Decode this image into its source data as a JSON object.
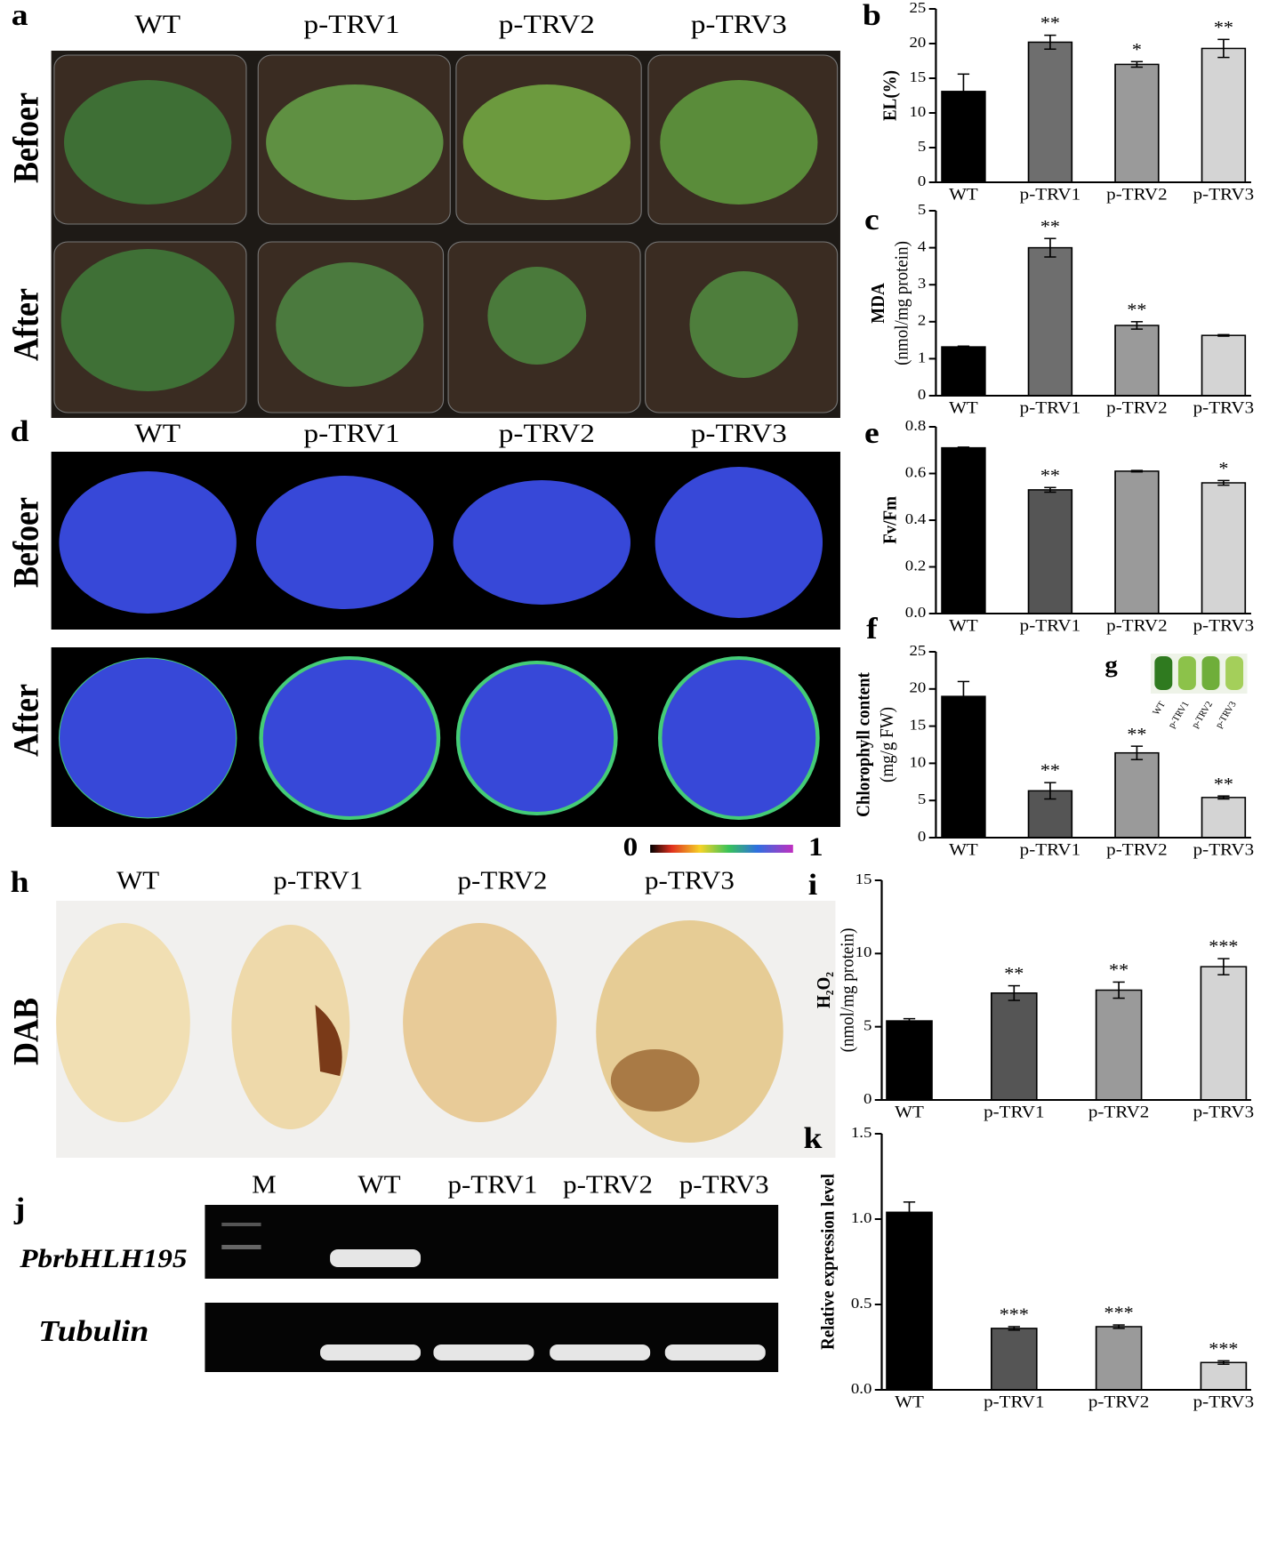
{
  "chart_data": [
    {
      "type": "bar",
      "panel": "b",
      "ylabel": [
        "EL(%)"
      ],
      "categories": [
        "WT",
        "p-TRV1",
        "p-TRV2",
        "p-TRV3"
      ],
      "values": [
        13.1,
        20.2,
        17,
        19.3
      ],
      "errors": [
        2.5,
        1,
        0.4,
        1.3
      ],
      "annotations": [
        null,
        "**",
        "*",
        "**"
      ],
      "colors": [
        "#000000",
        "#6e6e6e",
        "#9a9a9a",
        "#d4d4d4"
      ],
      "ylim": [
        0,
        25
      ],
      "yticks": [
        0,
        5,
        10,
        15,
        20,
        25
      ]
    },
    {
      "type": "bar",
      "panel": "c",
      "ylabel": [
        "MDA",
        "(nmol/mg protein)"
      ],
      "categories": [
        "WT",
        "p-TRV1",
        "p-TRV2",
        "p-TRV3"
      ],
      "values": [
        1.32,
        4.0,
        1.9,
        1.63
      ],
      "errors": [
        0.02,
        0.25,
        0.1,
        0.02
      ],
      "annotations": [
        null,
        "**",
        "**",
        null
      ],
      "colors": [
        "#000000",
        "#6e6e6e",
        "#9a9a9a",
        "#d4d4d4"
      ],
      "ylim": [
        0,
        5
      ],
      "yticks": [
        0,
        1,
        2,
        3,
        4,
        5
      ]
    },
    {
      "type": "bar",
      "panel": "e",
      "ylabel": [
        "Fv/Fm"
      ],
      "categories": [
        "WT",
        "p-TRV1",
        "p-TRV2",
        "p-TRV3"
      ],
      "values": [
        0.71,
        0.53,
        0.61,
        0.56
      ],
      "errors": [
        0.003,
        0.01,
        0.003,
        0.01
      ],
      "annotations": [
        null,
        "**",
        null,
        "*"
      ],
      "colors": [
        "#000000",
        "#555555",
        "#9a9a9a",
        "#d4d4d4"
      ],
      "ylim": [
        0,
        0.8
      ],
      "yticks": [
        {
          "value": 0,
          "label": "0.0"
        },
        0.2,
        0.4,
        0.6,
        0.8
      ]
    },
    {
      "type": "bar",
      "panel": "f",
      "ylabel": [
        "Chlorophyll content",
        "(mg/g FW)"
      ],
      "categories": [
        "WT",
        "p-TRV1",
        "p-TRV2",
        "p-TRV3"
      ],
      "values": [
        19,
        6.3,
        11.4,
        5.4
      ],
      "errors": [
        2,
        1.1,
        0.9,
        0.2
      ],
      "annotations": [
        null,
        "**",
        "**",
        "**"
      ],
      "colors": [
        "#000000",
        "#555555",
        "#9a9a9a",
        "#d4d4d4"
      ],
      "ylim": [
        0,
        25
      ],
      "yticks": [
        0,
        5,
        10,
        15,
        20,
        25
      ]
    },
    {
      "type": "bar",
      "panel": "i",
      "ylabel": [
        "H₂O₂",
        "(nmol/mg protein)"
      ],
      "categories": [
        "WT",
        "p-TRV1",
        "p-TRV2",
        "p-TRV3"
      ],
      "values": [
        5.4,
        7.3,
        7.5,
        9.1
      ],
      "errors": [
        0.15,
        0.5,
        0.55,
        0.55
      ],
      "annotations": [
        null,
        "**",
        "**",
        "***"
      ],
      "colors": [
        "#000000",
        "#555555",
        "#9a9a9a",
        "#d4d4d4"
      ],
      "ylim": [
        0,
        15
      ],
      "yticks": [
        0,
        5,
        10,
        15
      ]
    },
    {
      "type": "bar",
      "panel": "k",
      "ylabel": [
        "Relative expression level"
      ],
      "categories": [
        "WT",
        "p-TRV1",
        "p-TRV2",
        "p-TRV3"
      ],
      "values": [
        1.04,
        0.36,
        0.37,
        0.16
      ],
      "errors": [
        0.06,
        0.01,
        0.01,
        0.01
      ],
      "annotations": [
        null,
        "***",
        "***",
        "***"
      ],
      "colors": [
        "#000000",
        "#555555",
        "#9a9a9a",
        "#d4d4d4"
      ],
      "ylim": [
        0,
        1.5
      ],
      "yticks": [
        {
          "value": 0,
          "label": "0.0"
        },
        0.5,
        {
          "value": 1,
          "label": "1.0"
        },
        1.5
      ]
    }
  ],
  "photos": {
    "a": {
      "letter": "a",
      "columns": [
        "WT",
        "p-TRV1",
        "p-TRV2",
        "p-TRV3"
      ],
      "rows": [
        "Befoer",
        "After"
      ]
    },
    "d": {
      "letter": "d",
      "columns": [
        "WT",
        "p-TRV1",
        "p-TRV2",
        "p-TRV3"
      ],
      "rows": [
        "Befoer",
        "After"
      ],
      "scale": [
        "0",
        "1"
      ]
    },
    "g": {
      "letter": "g",
      "tubes": [
        "WT",
        "p-TRV1",
        "p-TRV2",
        "p-TRV3"
      ]
    },
    "h": {
      "letter": "h",
      "columns": [
        "WT",
        "p-TRV1",
        "p-TRV2",
        "p-TRV3"
      ],
      "row": "DAB"
    },
    "j": {
      "letter": "j",
      "columns": [
        "M",
        "WT",
        "p-TRV1",
        "p-TRV2",
        "p-TRV3"
      ],
      "rows": [
        "PbrbHLH195",
        "Tubulin"
      ]
    }
  }
}
